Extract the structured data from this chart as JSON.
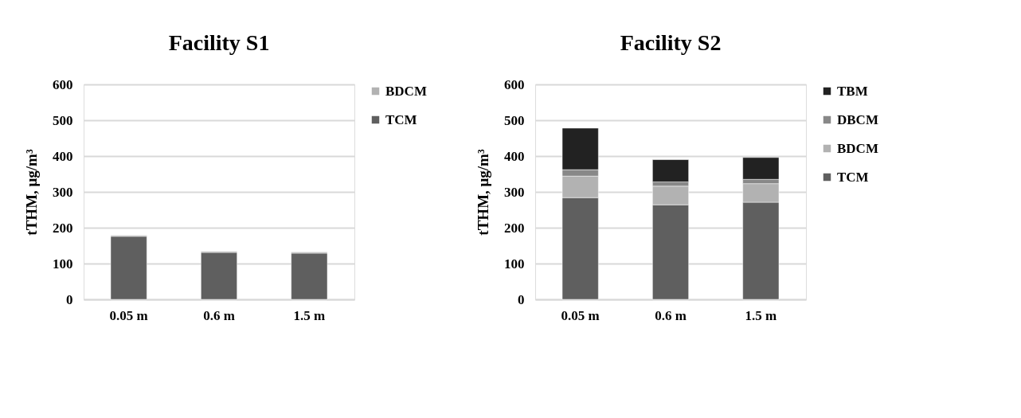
{
  "chart_data": [
    {
      "type": "bar",
      "title": "Facility S1",
      "ylabel": "tTHM, μg/m³",
      "categories": [
        "0.05 m",
        "0.6 m",
        "1.5 m"
      ],
      "stacked": true,
      "ylim": [
        0,
        600
      ],
      "yticks": [
        0,
        100,
        200,
        300,
        400,
        500,
        600
      ],
      "grid": "y",
      "legend": "top right",
      "series": [
        {
          "name": "TCM",
          "color": "#5f5f5f",
          "values": [
            176,
            131,
            129
          ]
        },
        {
          "name": "BDCM",
          "color": "#b2b2b2",
          "values": [
            3,
            3,
            3
          ]
        }
      ]
    },
    {
      "type": "bar",
      "title": "Facility S2",
      "ylabel": "tTHM, μg/m³",
      "categories": [
        "0.05 m",
        "0.6 m",
        "1.5 m"
      ],
      "stacked": true,
      "ylim": [
        0,
        600
      ],
      "yticks": [
        0,
        100,
        200,
        300,
        400,
        500,
        600
      ],
      "grid": "y",
      "legend": "top right",
      "series": [
        {
          "name": "TCM",
          "color": "#5f5f5f",
          "values": [
            284,
            264,
            271
          ]
        },
        {
          "name": "BDCM",
          "color": "#b2b2b2",
          "values": [
            60,
            52,
            52
          ]
        },
        {
          "name": "DBCM",
          "color": "#888888",
          "values": [
            18,
            12,
            12
          ]
        },
        {
          "name": "TBM",
          "color": "#222222",
          "values": [
            116,
            62,
            61
          ]
        }
      ]
    }
  ]
}
